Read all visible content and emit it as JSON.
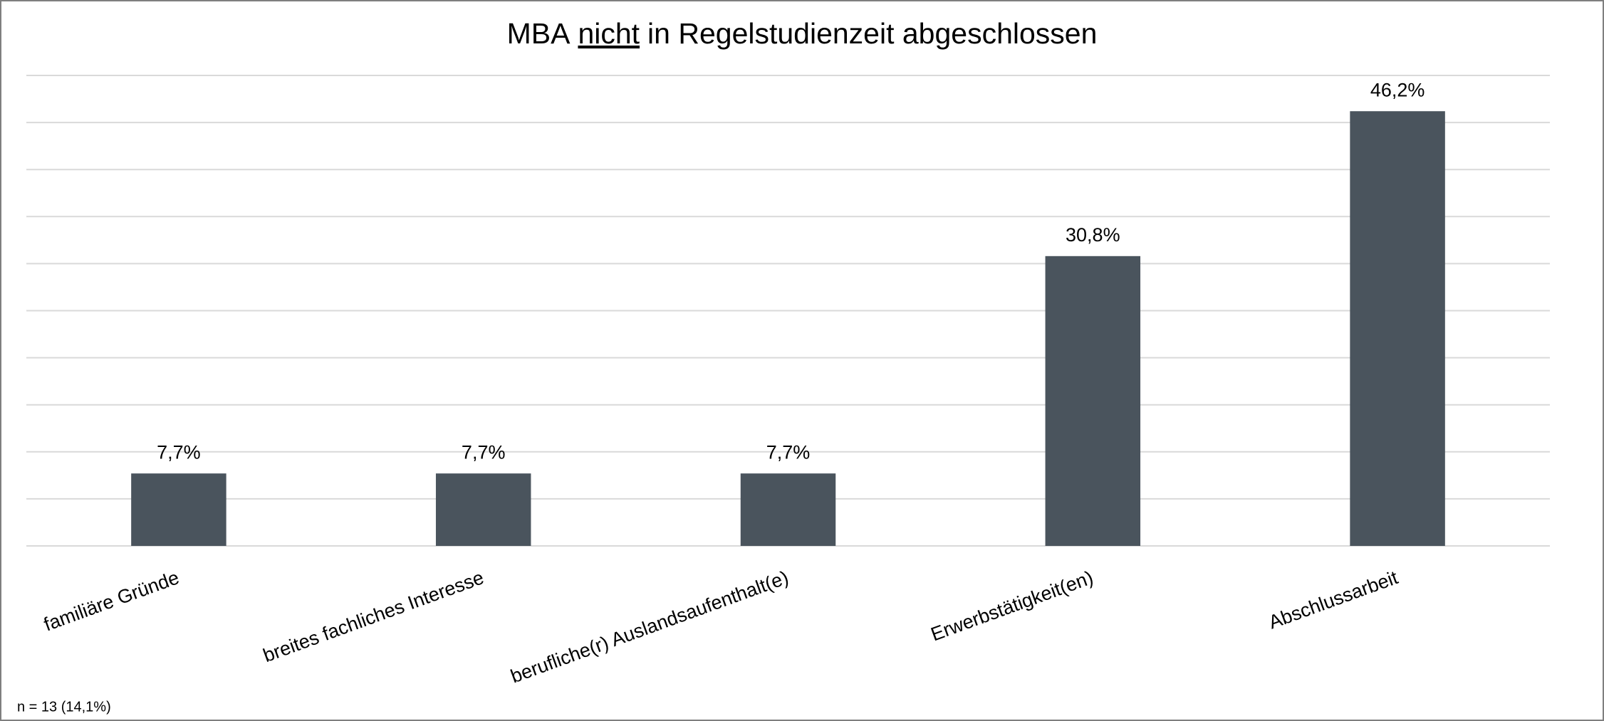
{
  "chart_data": {
    "type": "bar",
    "title": [
      "MBA",
      "nicht",
      "in Regelstudienzeit abgeschlossen"
    ],
    "categories": [
      "familiäre Gründe",
      "breites fachliches Interesse",
      "berufliche(r) Auslandsaufenthalt(e)",
      "Erwerbstätigkeit(en)",
      "Abschlussarbeit"
    ],
    "values": [
      7.7,
      7.7,
      7.7,
      30.8,
      46.2
    ],
    "value_labels": [
      "7,7%",
      "7,7%",
      "7,7%",
      "30,8%",
      "46,2%"
    ],
    "color": "#4a545d",
    "ylim": [
      0,
      50
    ],
    "yticks": [
      0,
      5,
      10,
      15,
      20,
      25,
      30,
      35,
      40,
      45,
      50
    ],
    "grid": true,
    "note": "n = 13 (14,1%)"
  }
}
